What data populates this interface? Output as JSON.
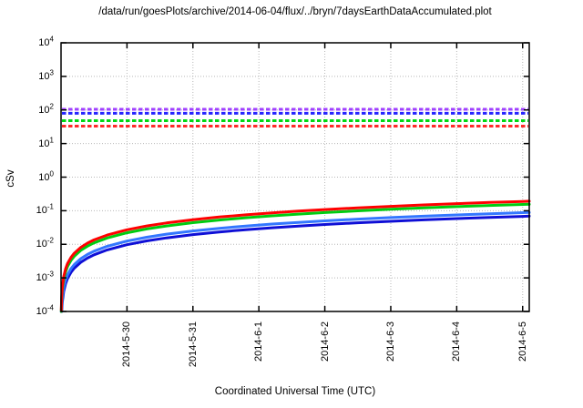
{
  "title": "/data/run/goesPlots/archive/2014-06-04/flux/../bryn/7daysEarthDataAccumulated.plot",
  "chart_data": {
    "type": "line",
    "title": "/data/run/goesPlots/archive/2014-06-04/flux/../bryn/7daysEarthDataAccumulated.plot",
    "xlabel": "Coordinated Universal Time (UTC)",
    "ylabel": "cSv",
    "y_scale": "log10",
    "ylim": [
      0.0001,
      10000
    ],
    "y_tick_exponents": [
      4,
      3,
      2,
      1,
      0,
      -1,
      -2,
      -3,
      -4
    ],
    "x_tick_labels": [
      "2014-5-30",
      "2014-5-31",
      "2014-6-1",
      "2014-6-2",
      "2014-6-3",
      "2014-6-4",
      "2014-6-5"
    ],
    "x_tick_positions_days": [
      1,
      2,
      3,
      4,
      5,
      6,
      7
    ],
    "xlim_days": [
      0,
      7.1
    ],
    "grid": true,
    "grid_style": "dotted",
    "threshold_lines": [
      {
        "name": "purple-threshold",
        "color": "#a040ff",
        "value_cSv": 105,
        "style": "dashed"
      },
      {
        "name": "blue-threshold",
        "color": "#2525ff",
        "value_cSv": 80,
        "style": "dashed"
      },
      {
        "name": "green-threshold",
        "color": "#00d915",
        "value_cSv": 48,
        "style": "dashed"
      },
      {
        "name": "red-threshold",
        "color": "#ff2a2a",
        "value_cSv": 33,
        "style": "dashed"
      }
    ],
    "t_days": [
      0.004,
      0.01,
      0.02,
      0.04,
      0.07,
      0.1,
      0.15,
      0.2,
      0.3,
      0.4,
      0.5,
      0.7,
      1,
      1.3,
      1.6,
      2,
      2.4,
      2.8,
      3.2,
      3.6,
      4,
      4.5,
      5,
      5.5,
      6,
      6.5,
      7,
      7.1
    ],
    "series": [
      {
        "name": "dark-blue-accumulated",
        "color": "#0f0fd6",
        "rate_cSv_per_day": 0.0097,
        "values": [
          4e-05,
          0.0001,
          0.00019,
          0.00039,
          0.00068,
          0.00097,
          0.00146,
          0.00194,
          0.00291,
          0.00388,
          0.00485,
          0.00679,
          0.0097,
          0.0126,
          0.0155,
          0.0194,
          0.0233,
          0.0272,
          0.031,
          0.0349,
          0.0388,
          0.0437,
          0.0485,
          0.0534,
          0.0582,
          0.063,
          0.0679,
          0.0689
        ]
      },
      {
        "name": "light-blue-accumulated",
        "color": "#3377ff",
        "rate_cSv_per_day": 0.0125,
        "values": [
          5e-05,
          0.000125,
          0.00025,
          0.0005,
          0.000875,
          0.00125,
          0.00188,
          0.0025,
          0.00375,
          0.005,
          0.00625,
          0.00875,
          0.0125,
          0.01625,
          0.02,
          0.025,
          0.03,
          0.035,
          0.04,
          0.045,
          0.05,
          0.05625,
          0.0625,
          0.06875,
          0.075,
          0.08125,
          0.0875,
          0.0888
        ]
      },
      {
        "name": "green-accumulated",
        "color": "#00cc11",
        "rate_cSv_per_day": 0.022,
        "values": [
          9e-05,
          0.00022,
          0.00044,
          0.00088,
          0.00154,
          0.0022,
          0.0033,
          0.0044,
          0.0066,
          0.0088,
          0.011,
          0.0154,
          0.022,
          0.0286,
          0.0352,
          0.044,
          0.0528,
          0.0616,
          0.0704,
          0.0792,
          0.088,
          0.099,
          0.11,
          0.121,
          0.132,
          0.143,
          0.154,
          0.156
        ]
      },
      {
        "name": "red-accumulated",
        "color": "#ff0000",
        "rate_cSv_per_day": 0.027,
        "values": [
          0.00011,
          0.00027,
          0.00054,
          0.00108,
          0.00189,
          0.0027,
          0.00405,
          0.0054,
          0.0081,
          0.0108,
          0.0135,
          0.0189,
          0.027,
          0.0351,
          0.0432,
          0.054,
          0.0648,
          0.0756,
          0.0864,
          0.0972,
          0.108,
          0.122,
          0.135,
          0.149,
          0.162,
          0.176,
          0.189,
          0.192
        ]
      }
    ],
    "colors": {
      "background": "#ffffff",
      "border": "#000000",
      "grid": "#b8b8b8",
      "text": "#000000"
    }
  }
}
